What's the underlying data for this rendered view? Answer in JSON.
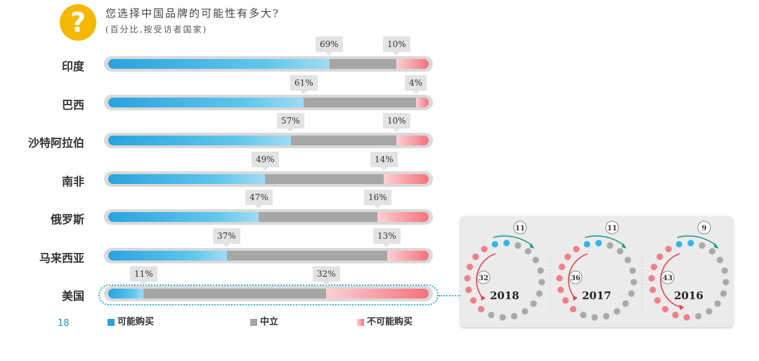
{
  "header": {
    "icon_symbol": "?",
    "title": "您选择中国品牌的可能性有多大?",
    "subtitle": "(百分比,按受访者国家)"
  },
  "page_number": "18",
  "colors": {
    "likely": "#2aa3de",
    "neutral": "#a6a6a6",
    "unlikely": "#f5717a",
    "badge": "#f5b800"
  },
  "chart_data": [
    {
      "type": "bar",
      "orientation": "horizontal",
      "stacked": true,
      "categories": [
        "印度",
        "巴西",
        "沙特阿拉伯",
        "南非",
        "俄罗斯",
        "马来西亚",
        "美国"
      ],
      "series": [
        {
          "name": "可能购买",
          "values": [
            69,
            61,
            57,
            49,
            47,
            37,
            11
          ]
        },
        {
          "name": "中立",
          "values": [
            21,
            35,
            33,
            37,
            37,
            50,
            57
          ]
        },
        {
          "name": "不可能购买",
          "values": [
            10,
            4,
            10,
            14,
            16,
            13,
            32
          ]
        }
      ],
      "data_labels": {
        "likely": [
          "69%",
          "61%",
          "57%",
          "49%",
          "47%",
          "37%",
          "11%"
        ],
        "unlikely": [
          "10%",
          "4%",
          "10%",
          "14%",
          "16%",
          "13%",
          "32%"
        ]
      },
      "xlim": [
        0,
        100
      ],
      "highlighted_category": "美国",
      "legend": [
        "可能购买",
        "中立",
        "不可能购买"
      ],
      "legend_position": "bottom"
    },
    {
      "type": "dot-ring",
      "description_of_units": "each ring of 20 dots",
      "items": [
        {
          "year": "2018",
          "likely": 11,
          "unlikely": 32,
          "likely_label": "11",
          "unlikely_label": "32",
          "blue_dots": 2,
          "red_dots": 7
        },
        {
          "year": "2017",
          "likely": 11,
          "unlikely": 36,
          "likely_label": "11",
          "unlikely_label": "36",
          "blue_dots": 2,
          "red_dots": 7
        },
        {
          "year": "2016",
          "likely": 9,
          "unlikely": 43,
          "likely_label": "9",
          "unlikely_label": "43",
          "blue_dots": 2,
          "red_dots": 9
        }
      ]
    }
  ]
}
